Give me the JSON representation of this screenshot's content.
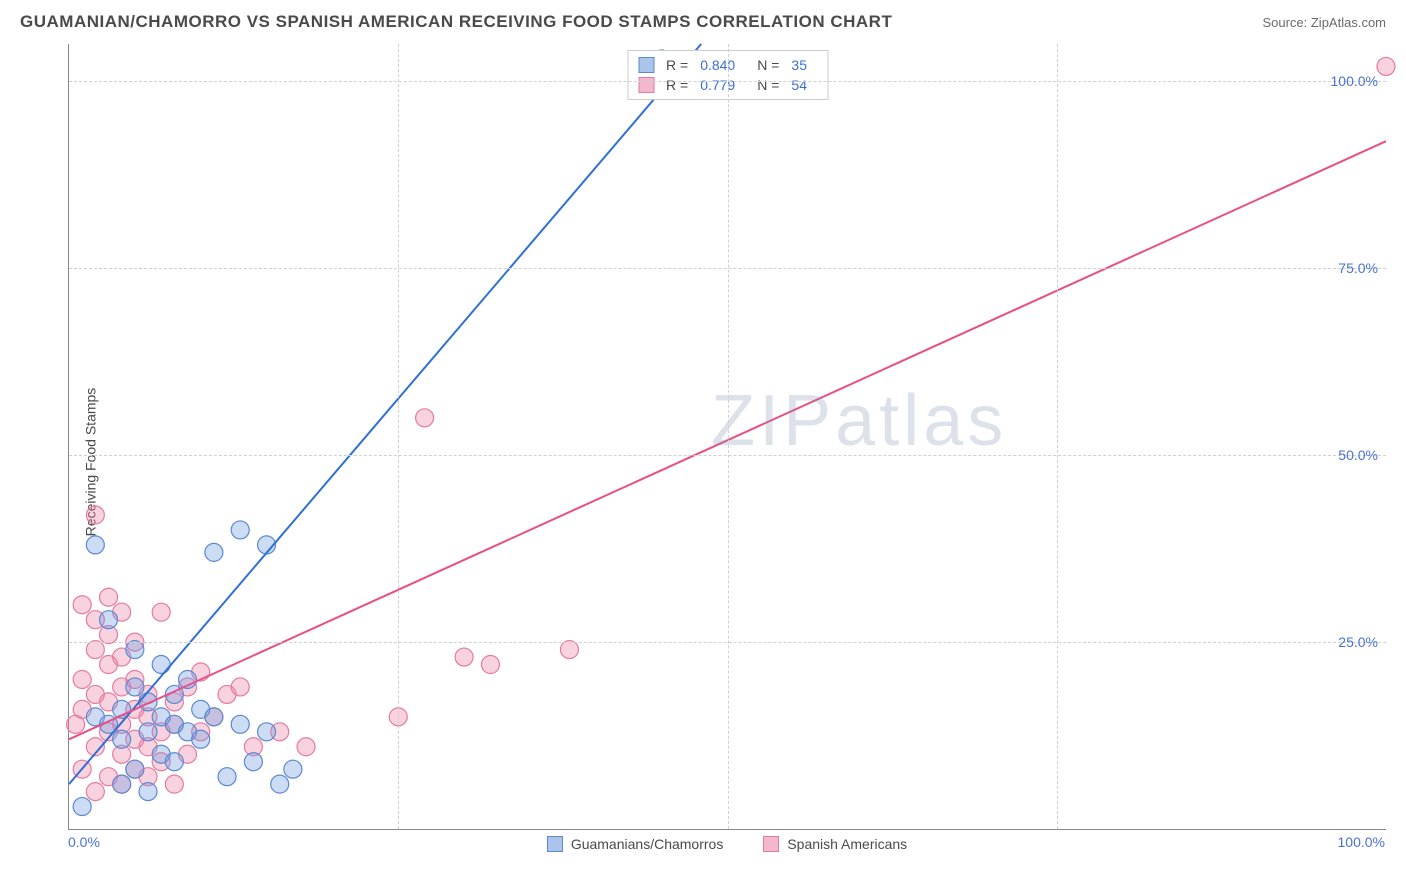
{
  "header": {
    "title": "GUAMANIAN/CHAMORRO VS SPANISH AMERICAN RECEIVING FOOD STAMPS CORRELATION CHART",
    "source": "Source: ZipAtlas.com"
  },
  "chart": {
    "type": "scatter",
    "ylabel": "Receiving Food Stamps",
    "xlim": [
      0,
      100
    ],
    "ylim": [
      0,
      105
    ],
    "x_ticks": [
      0,
      50,
      100
    ],
    "x_tick_labels": [
      "0.0%",
      "",
      "100.0%"
    ],
    "y_ticks": [
      25,
      50,
      75,
      100
    ],
    "y_tick_labels": [
      "25.0%",
      "50.0%",
      "75.0%",
      "100.0%"
    ],
    "x_minor_ticks": [
      25,
      75
    ],
    "background_color": "#ffffff",
    "grid_color": "#d0d0d0",
    "axis_color": "#888888",
    "tick_label_color": "#4a72d4",
    "watermark": "ZIPatlas",
    "series": [
      {
        "name": "Guamanians/Chamorros",
        "color_fill": "rgba(108,154,225,0.35)",
        "color_stroke": "#5b89d0",
        "swatch_fill": "#aac4ec",
        "swatch_border": "#5b89d0",
        "marker_radius": 9,
        "line_color": "#2f6fd6",
        "line_width": 2,
        "R": "0.840",
        "N": "35",
        "trend": {
          "x1": 0,
          "y1": 6,
          "x2": 48,
          "y2": 105
        },
        "points": [
          [
            1,
            3
          ],
          [
            2,
            15
          ],
          [
            2,
            38
          ],
          [
            3,
            14
          ],
          [
            3,
            28
          ],
          [
            4,
            6
          ],
          [
            4,
            12
          ],
          [
            4,
            16
          ],
          [
            5,
            8
          ],
          [
            5,
            19
          ],
          [
            5,
            24
          ],
          [
            6,
            5
          ],
          [
            6,
            13
          ],
          [
            6,
            17
          ],
          [
            7,
            10
          ],
          [
            7,
            15
          ],
          [
            7,
            22
          ],
          [
            8,
            9
          ],
          [
            8,
            14
          ],
          [
            8,
            18
          ],
          [
            9,
            13
          ],
          [
            9,
            20
          ],
          [
            10,
            12
          ],
          [
            10,
            16
          ],
          [
            11,
            15
          ],
          [
            11,
            37
          ],
          [
            12,
            7
          ],
          [
            13,
            14
          ],
          [
            13,
            40
          ],
          [
            14,
            9
          ],
          [
            15,
            13
          ],
          [
            15,
            38
          ],
          [
            16,
            6
          ],
          [
            17,
            8
          ],
          [
            45,
            103
          ]
        ]
      },
      {
        "name": "Spanish Americans",
        "color_fill": "rgba(236,128,162,0.35)",
        "color_stroke": "#e67aa0",
        "swatch_fill": "#f3b8cd",
        "swatch_border": "#e67aa0",
        "marker_radius": 9,
        "line_color": "#e84f87",
        "line_width": 2,
        "R": "0.779",
        "N": "54",
        "trend": {
          "x1": 0,
          "y1": 12,
          "x2": 100,
          "y2": 92
        },
        "points": [
          [
            0.5,
            14
          ],
          [
            1,
            8
          ],
          [
            1,
            16
          ],
          [
            1,
            20
          ],
          [
            1,
            30
          ],
          [
            2,
            5
          ],
          [
            2,
            11
          ],
          [
            2,
            18
          ],
          [
            2,
            24
          ],
          [
            2,
            28
          ],
          [
            2,
            42
          ],
          [
            3,
            7
          ],
          [
            3,
            13
          ],
          [
            3,
            17
          ],
          [
            3,
            22
          ],
          [
            3,
            26
          ],
          [
            3,
            31
          ],
          [
            4,
            6
          ],
          [
            4,
            10
          ],
          [
            4,
            14
          ],
          [
            4,
            19
          ],
          [
            4,
            23
          ],
          [
            4,
            29
          ],
          [
            5,
            8
          ],
          [
            5,
            12
          ],
          [
            5,
            16
          ],
          [
            5,
            20
          ],
          [
            5,
            25
          ],
          [
            6,
            7
          ],
          [
            6,
            11
          ],
          [
            6,
            15
          ],
          [
            6,
            18
          ],
          [
            7,
            9
          ],
          [
            7,
            13
          ],
          [
            7,
            29
          ],
          [
            8,
            6
          ],
          [
            8,
            14
          ],
          [
            8,
            17
          ],
          [
            9,
            10
          ],
          [
            9,
            19
          ],
          [
            10,
            13
          ],
          [
            10,
            21
          ],
          [
            11,
            15
          ],
          [
            12,
            18
          ],
          [
            13,
            19
          ],
          [
            14,
            11
          ],
          [
            16,
            13
          ],
          [
            18,
            11
          ],
          [
            25,
            15
          ],
          [
            27,
            55
          ],
          [
            30,
            23
          ],
          [
            32,
            22
          ],
          [
            38,
            24
          ],
          [
            100,
            102
          ]
        ]
      }
    ]
  }
}
